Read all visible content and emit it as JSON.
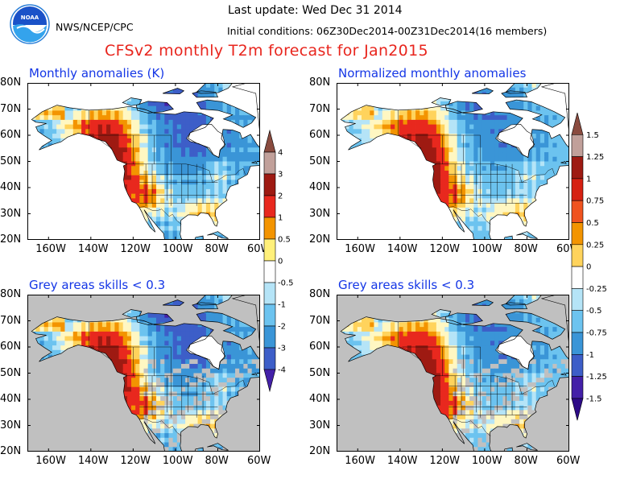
{
  "header": {
    "agency": "NWS/NCEP/CPC",
    "logo_text": "NOAA",
    "last_update": "Last update: Wed Dec 31 2014",
    "initial_conditions": "Initial conditions: 06Z30Dec2014-00Z31Dec2014(16 members)",
    "title": "CFSv2 monthly T2m forecast for Jan2015"
  },
  "panels": [
    {
      "id": "top-left",
      "title": "Monthly anomalies (K)",
      "grey_mask": false
    },
    {
      "id": "top-right",
      "title": "Normalized monthly anomalies",
      "grey_mask": false
    },
    {
      "id": "bottom-left",
      "title": "Grey areas skills < 0.3",
      "grey_mask": true
    },
    {
      "id": "bottom-right",
      "title": "Grey areas skills < 0.3",
      "grey_mask": true
    }
  ],
  "axes": {
    "lat_ticks": [
      "80N",
      "70N",
      "60N",
      "50N",
      "40N",
      "30N",
      "20N"
    ],
    "lon_ticks": [
      "160W",
      "140W",
      "120W",
      "100W",
      "80W",
      "60W"
    ],
    "lat_range": [
      20,
      80
    ],
    "lon_range": [
      -170,
      -60
    ]
  },
  "colorbars": [
    {
      "id": "anomaly-k",
      "labels": [
        "4",
        "3",
        "2",
        "1",
        "0.5",
        "0",
        "-0.5",
        "-1",
        "-2",
        "-3",
        "-4"
      ]
    },
    {
      "id": "normalized",
      "labels": [
        "1.5",
        "1.25",
        "1",
        "0.75",
        "0.5",
        "0.25",
        "0",
        "-0.25",
        "-0.5",
        "-0.75",
        "-1",
        "-1.25",
        "-1.5"
      ]
    }
  ],
  "palette": {
    "colorbar_anomaly": [
      "#8a4b3f",
      "#c1a09a",
      "#9e1a12",
      "#e8281e",
      "#f39400",
      "#fff07a",
      "#ffffff",
      "#b5e4f7",
      "#6cc3ef",
      "#3a95d7",
      "#3d5ec8",
      "#4320a8"
    ],
    "colorbar_normalized": [
      "#8a4b3f",
      "#c1a09a",
      "#9e1a12",
      "#d62112",
      "#f0531f",
      "#f39400",
      "#ffd35c",
      "#ffffff",
      "#b5e4f7",
      "#6cc3ef",
      "#3a95d7",
      "#3d5ec8",
      "#4320a8",
      "#2d0a87"
    ],
    "ocean_fill": "#ffffff",
    "grey_mask": "#c0c0c0",
    "title_color": "#e8251d",
    "panel_title_color": "#1436e6"
  }
}
